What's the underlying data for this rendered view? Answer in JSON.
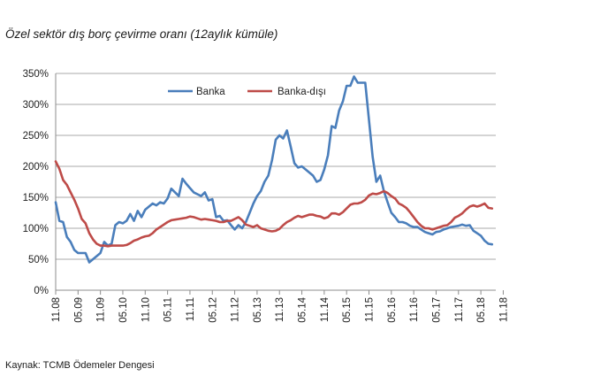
{
  "title": "Özel sektör dış borç çevirme oranı (12aylık kümüle)",
  "source": "Kaynak: TCMB Ödemeler Dengesi",
  "chart_data": {
    "type": "line",
    "title": "Özel sektör dış borç çevirme oranı (12aylık kümüle)",
    "ylim": [
      0,
      350
    ],
    "yticks": [
      0,
      50,
      100,
      150,
      200,
      250,
      300,
      350
    ],
    "ytick_labels": [
      "0%",
      "50%",
      "100%",
      "150%",
      "200%",
      "250%",
      "300%",
      "350%"
    ],
    "xtick_labels": [
      "11.08",
      "05.09",
      "11.09",
      "05.10",
      "11.10",
      "05.11",
      "11.11",
      "05.12",
      "11.12",
      "05.13",
      "11.13",
      "05.14",
      "11.14",
      "05.15",
      "11.15",
      "05.16",
      "11.16",
      "05.17",
      "11.17",
      "05.18",
      "11.18"
    ],
    "grid": "horizontal",
    "legend": "top",
    "colors": {
      "Banka": "#4a7ebb",
      "Banka-dışı": "#be4b48"
    },
    "series": [
      {
        "name": "Banka",
        "points": [
          [
            0,
            142
          ],
          [
            1,
            112
          ],
          [
            2,
            110
          ],
          [
            3,
            86
          ],
          [
            4,
            78
          ],
          [
            5,
            65
          ],
          [
            6,
            60
          ],
          [
            7,
            60
          ],
          [
            8,
            60
          ],
          [
            9,
            45
          ],
          [
            10,
            50
          ],
          [
            11,
            55
          ],
          [
            12,
            60
          ],
          [
            13,
            78
          ],
          [
            14,
            72
          ],
          [
            15,
            75
          ],
          [
            16,
            105
          ],
          [
            17,
            110
          ],
          [
            18,
            108
          ],
          [
            19,
            112
          ],
          [
            20,
            123
          ],
          [
            21,
            112
          ],
          [
            22,
            128
          ],
          [
            23,
            118
          ],
          [
            24,
            130
          ],
          [
            25,
            135
          ],
          [
            26,
            140
          ],
          [
            27,
            137
          ],
          [
            28,
            142
          ],
          [
            29,
            140
          ],
          [
            30,
            148
          ],
          [
            31,
            164
          ],
          [
            32,
            158
          ],
          [
            33,
            152
          ],
          [
            34,
            180
          ],
          [
            35,
            172
          ],
          [
            36,
            165
          ],
          [
            37,
            158
          ],
          [
            38,
            155
          ],
          [
            39,
            152
          ],
          [
            40,
            158
          ],
          [
            41,
            145
          ],
          [
            42,
            147
          ],
          [
            43,
            118
          ],
          [
            44,
            120
          ],
          [
            45,
            112
          ],
          [
            46,
            113
          ],
          [
            47,
            105
          ],
          [
            48,
            98
          ],
          [
            49,
            105
          ],
          [
            50,
            100
          ],
          [
            51,
            110
          ],
          [
            52,
            125
          ],
          [
            53,
            140
          ],
          [
            54,
            152
          ],
          [
            55,
            160
          ],
          [
            56,
            175
          ],
          [
            57,
            185
          ],
          [
            58,
            210
          ],
          [
            59,
            243
          ],
          [
            60,
            250
          ],
          [
            61,
            245
          ],
          [
            62,
            258
          ],
          [
            63,
            232
          ],
          [
            64,
            205
          ],
          [
            65,
            198
          ],
          [
            66,
            200
          ],
          [
            67,
            195
          ],
          [
            68,
            190
          ],
          [
            69,
            185
          ],
          [
            70,
            175
          ],
          [
            71,
            178
          ],
          [
            72,
            195
          ],
          [
            73,
            218
          ],
          [
            74,
            265
          ],
          [
            75,
            262
          ],
          [
            76,
            290
          ],
          [
            77,
            305
          ],
          [
            78,
            330
          ],
          [
            79,
            330
          ],
          [
            80,
            345
          ],
          [
            81,
            335
          ],
          [
            82,
            335
          ],
          [
            83,
            335
          ],
          [
            84,
            275
          ],
          [
            85,
            215
          ],
          [
            86,
            175
          ],
          [
            87,
            185
          ],
          [
            88,
            160
          ],
          [
            89,
            142
          ],
          [
            90,
            125
          ],
          [
            91,
            118
          ],
          [
            92,
            110
          ],
          [
            93,
            110
          ],
          [
            94,
            108
          ],
          [
            95,
            104
          ],
          [
            96,
            102
          ],
          [
            97,
            102
          ],
          [
            98,
            98
          ],
          [
            99,
            94
          ],
          [
            100,
            92
          ],
          [
            101,
            90
          ],
          [
            102,
            94
          ],
          [
            103,
            95
          ],
          [
            104,
            98
          ],
          [
            105,
            100
          ],
          [
            106,
            102
          ],
          [
            107,
            103
          ],
          [
            108,
            104
          ],
          [
            109,
            106
          ],
          [
            110,
            104
          ],
          [
            111,
            105
          ],
          [
            112,
            96
          ],
          [
            113,
            92
          ],
          [
            114,
            88
          ],
          [
            115,
            80
          ],
          [
            116,
            75
          ],
          [
            117,
            74
          ]
        ]
      },
      {
        "name": "Banka-dışı",
        "points": [
          [
            0,
            208
          ],
          [
            1,
            196
          ],
          [
            2,
            178
          ],
          [
            3,
            170
          ],
          [
            4,
            158
          ],
          [
            5,
            146
          ],
          [
            6,
            132
          ],
          [
            7,
            115
          ],
          [
            8,
            108
          ],
          [
            9,
            92
          ],
          [
            10,
            82
          ],
          [
            11,
            75
          ],
          [
            12,
            72
          ],
          [
            13,
            72
          ],
          [
            14,
            71
          ],
          [
            15,
            72
          ],
          [
            16,
            72
          ],
          [
            17,
            72
          ],
          [
            18,
            72
          ],
          [
            19,
            73
          ],
          [
            20,
            76
          ],
          [
            21,
            80
          ],
          [
            22,
            82
          ],
          [
            23,
            85
          ],
          [
            24,
            87
          ],
          [
            25,
            88
          ],
          [
            26,
            92
          ],
          [
            27,
            98
          ],
          [
            28,
            102
          ],
          [
            29,
            106
          ],
          [
            30,
            110
          ],
          [
            31,
            113
          ],
          [
            32,
            114
          ],
          [
            33,
            115
          ],
          [
            34,
            116
          ],
          [
            35,
            117
          ],
          [
            36,
            119
          ],
          [
            37,
            118
          ],
          [
            38,
            116
          ],
          [
            39,
            114
          ],
          [
            40,
            115
          ],
          [
            41,
            114
          ],
          [
            42,
            113
          ],
          [
            43,
            112
          ],
          [
            44,
            110
          ],
          [
            45,
            110
          ],
          [
            46,
            112
          ],
          [
            47,
            112
          ],
          [
            48,
            115
          ],
          [
            49,
            118
          ],
          [
            50,
            113
          ],
          [
            51,
            106
          ],
          [
            52,
            104
          ],
          [
            53,
            102
          ],
          [
            54,
            105
          ],
          [
            55,
            100
          ],
          [
            56,
            98
          ],
          [
            57,
            96
          ],
          [
            58,
            95
          ],
          [
            59,
            96
          ],
          [
            60,
            99
          ],
          [
            61,
            105
          ],
          [
            62,
            110
          ],
          [
            63,
            113
          ],
          [
            64,
            117
          ],
          [
            65,
            120
          ],
          [
            66,
            118
          ],
          [
            67,
            120
          ],
          [
            68,
            122
          ],
          [
            69,
            122
          ],
          [
            70,
            120
          ],
          [
            71,
            119
          ],
          [
            72,
            116
          ],
          [
            73,
            118
          ],
          [
            74,
            124
          ],
          [
            75,
            124
          ],
          [
            76,
            122
          ],
          [
            77,
            126
          ],
          [
            78,
            132
          ],
          [
            79,
            138
          ],
          [
            80,
            140
          ],
          [
            81,
            140
          ],
          [
            82,
            142
          ],
          [
            83,
            146
          ],
          [
            84,
            153
          ],
          [
            85,
            156
          ],
          [
            86,
            155
          ],
          [
            87,
            157
          ],
          [
            88,
            160
          ],
          [
            89,
            157
          ],
          [
            90,
            152
          ],
          [
            91,
            148
          ],
          [
            92,
            140
          ],
          [
            93,
            137
          ],
          [
            94,
            133
          ],
          [
            95,
            126
          ],
          [
            96,
            118
          ],
          [
            97,
            110
          ],
          [
            98,
            104
          ],
          [
            99,
            100
          ],
          [
            100,
            100
          ],
          [
            101,
            98
          ],
          [
            102,
            100
          ],
          [
            103,
            102
          ],
          [
            104,
            104
          ],
          [
            105,
            105
          ],
          [
            106,
            110
          ],
          [
            107,
            117
          ],
          [
            108,
            120
          ],
          [
            109,
            124
          ],
          [
            110,
            130
          ],
          [
            111,
            135
          ],
          [
            112,
            137
          ],
          [
            113,
            135
          ],
          [
            114,
            137
          ],
          [
            115,
            140
          ],
          [
            116,
            133
          ],
          [
            117,
            132
          ]
        ]
      }
    ]
  }
}
